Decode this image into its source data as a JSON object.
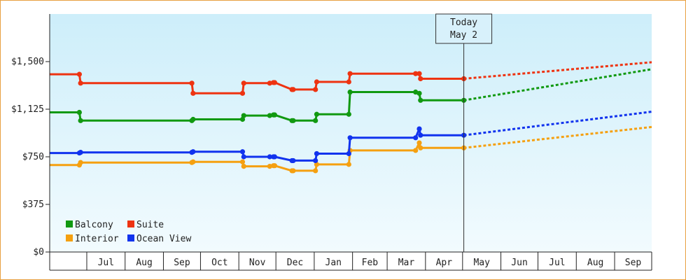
{
  "chart_data": {
    "type": "line",
    "title": "",
    "xlabel": "",
    "ylabel": "",
    "x_ticks": [
      "Jul",
      "Aug",
      "Sep",
      "Oct",
      "Nov",
      "Dec",
      "Jan",
      "Feb",
      "Mar",
      "Apr",
      "May",
      "Jun",
      "Jul",
      "Aug",
      "Sep"
    ],
    "x_range": [
      "2012-06-01",
      "2013-10-01"
    ],
    "ylim": [
      0,
      1875
    ],
    "y_ticks": [
      0,
      375,
      750,
      1125,
      1500
    ],
    "y_tick_labels": [
      "$0",
      "$375",
      "$750",
      "$1,125",
      "$1,500"
    ],
    "today": {
      "line1": "Today",
      "line2": "May 2",
      "date": "2013-05-02"
    },
    "legend_position": "bottom-left",
    "grid": false,
    "series": [
      {
        "name": "Balcony",
        "color": "#119911",
        "x": [
          "2012-06-01",
          "2012-06-25",
          "2012-06-26",
          "2012-09-24",
          "2012-09-25",
          "2012-11-04",
          "2012-11-05",
          "2012-11-26",
          "2012-11-29",
          "2012-11-30",
          "2012-12-14",
          "2012-12-15",
          "2013-01-02",
          "2013-01-03",
          "2013-01-29",
          "2013-01-30",
          "2013-03-24",
          "2013-03-27",
          "2013-03-28",
          "2013-05-02"
        ],
        "y": [
          1100,
          1100,
          1035,
          1035,
          1045,
          1045,
          1075,
          1075,
          1080,
          1080,
          1035,
          1035,
          1035,
          1085,
          1085,
          1260,
          1260,
          1250,
          1195,
          1195
        ],
        "forecast": {
          "x": [
            "2013-05-02",
            "2013-10-01"
          ],
          "y": [
            1195,
            1440
          ]
        }
      },
      {
        "name": "Suite",
        "color": "#ee3311",
        "x": [
          "2012-06-01",
          "2012-06-25",
          "2012-06-26",
          "2012-09-24",
          "2012-09-25",
          "2012-11-04",
          "2012-11-05",
          "2012-11-26",
          "2012-11-29",
          "2012-11-30",
          "2012-12-14",
          "2012-12-15",
          "2013-01-02",
          "2013-01-03",
          "2013-01-29",
          "2013-01-30",
          "2013-03-24",
          "2013-03-27",
          "2013-03-28",
          "2013-05-02"
        ],
        "y": [
          1400,
          1400,
          1330,
          1330,
          1250,
          1250,
          1330,
          1330,
          1335,
          1335,
          1280,
          1280,
          1280,
          1340,
          1340,
          1405,
          1405,
          1405,
          1365,
          1365
        ],
        "forecast": {
          "x": [
            "2013-05-02",
            "2013-10-01"
          ],
          "y": [
            1365,
            1495
          ]
        }
      },
      {
        "name": "Interior",
        "color": "#f5a010",
        "x": [
          "2012-06-01",
          "2012-06-25",
          "2012-06-26",
          "2012-09-24",
          "2012-09-25",
          "2012-11-04",
          "2012-11-05",
          "2012-11-26",
          "2012-11-29",
          "2012-11-30",
          "2012-12-14",
          "2012-12-15",
          "2013-01-02",
          "2013-01-03",
          "2013-01-29",
          "2013-01-30",
          "2013-03-24",
          "2013-03-27",
          "2013-03-28",
          "2013-05-02"
        ],
        "y": [
          685,
          685,
          705,
          705,
          710,
          710,
          675,
          675,
          680,
          680,
          640,
          640,
          640,
          690,
          690,
          800,
          800,
          860,
          820,
          820
        ],
        "forecast": {
          "x": [
            "2013-05-02",
            "2013-10-01"
          ],
          "y": [
            820,
            985
          ]
        }
      },
      {
        "name": "Ocean View",
        "color": "#1133ee",
        "x": [
          "2012-06-01",
          "2012-06-25",
          "2012-06-26",
          "2012-09-24",
          "2012-09-25",
          "2012-11-04",
          "2012-11-05",
          "2012-11-26",
          "2012-11-29",
          "2012-11-30",
          "2012-12-14",
          "2012-12-15",
          "2013-01-02",
          "2013-01-03",
          "2013-01-29",
          "2013-01-30",
          "2013-03-24",
          "2013-03-27",
          "2013-03-28",
          "2013-05-02"
        ],
        "y": [
          780,
          780,
          785,
          785,
          790,
          790,
          750,
          750,
          750,
          750,
          720,
          720,
          720,
          775,
          775,
          900,
          900,
          970,
          920,
          920
        ],
        "forecast": {
          "x": [
            "2013-05-02",
            "2013-10-01"
          ],
          "y": [
            920,
            1105
          ]
        }
      }
    ]
  }
}
